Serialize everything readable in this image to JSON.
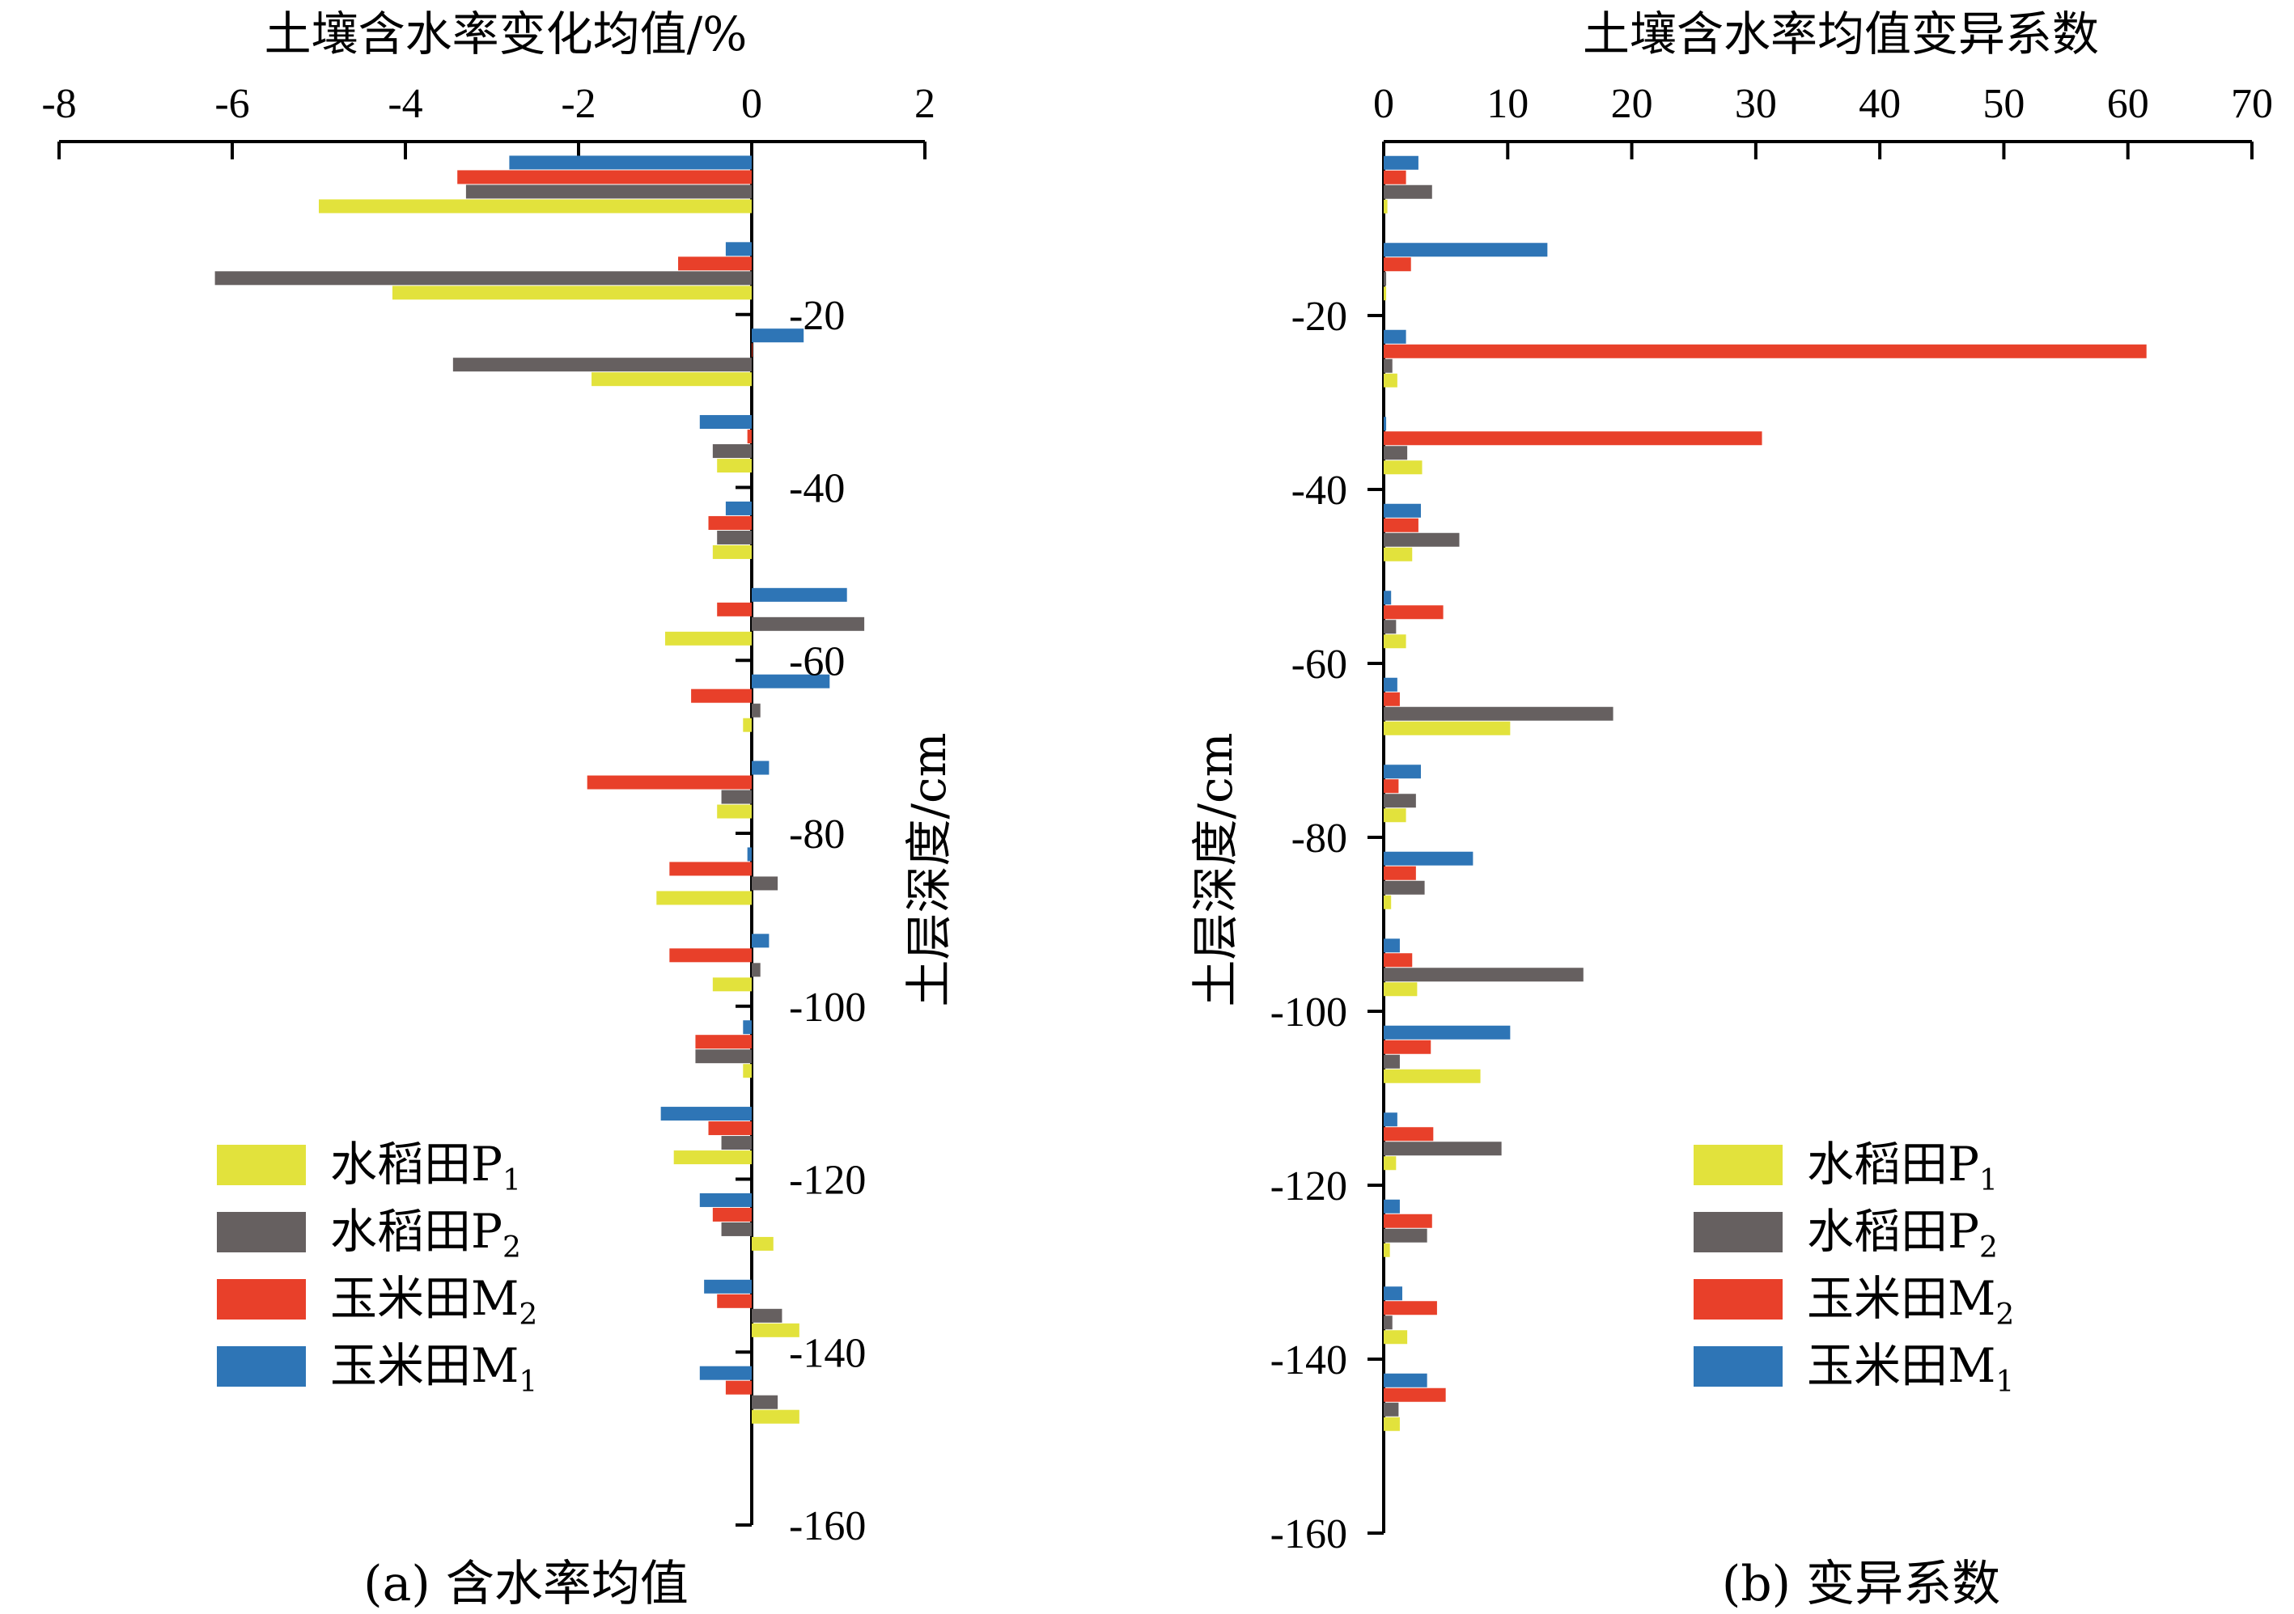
{
  "chart_data": [
    {
      "type": "bar",
      "orientation": "horizontal",
      "caption": "(a) 含水率均值",
      "xlabel": "土壤含水率变化均值/%",
      "ylabel": "土层深度/cm",
      "xlim": [
        -8,
        2
      ],
      "xticks": [
        "-8",
        "-6",
        "-4",
        "-2",
        "0",
        "2"
      ],
      "ylim": [
        -160,
        0
      ],
      "yticks": [
        "-20",
        "-40",
        "-60",
        "-80",
        "-100",
        "-120",
        "-140",
        "-160"
      ],
      "depth_groups": [
        -5,
        -15,
        -25,
        -35,
        -45,
        -55,
        -65,
        -75,
        -85,
        -95,
        -105,
        -115,
        -125,
        -135,
        -145
      ],
      "series": [
        {
          "name": "玉米田M",
          "sub": "1",
          "color": "#2e75b6",
          "values": [
            -2.8,
            -0.3,
            0.6,
            -0.6,
            -0.3,
            1.1,
            0.9,
            0.2,
            -0.05,
            0.2,
            -0.1,
            -1.05,
            -0.6,
            -0.55,
            -0.6
          ]
        },
        {
          "name": "玉米田M",
          "sub": "2",
          "color": "#e8402a",
          "values": [
            -3.4,
            -0.85,
            0.0,
            -0.05,
            -0.5,
            -0.4,
            -0.7,
            -1.9,
            -0.95,
            -0.95,
            -0.65,
            -0.5,
            -0.45,
            -0.4,
            -0.3
          ]
        },
        {
          "name": "水稻田P",
          "sub": "2",
          "color": "#666060",
          "values": [
            -3.3,
            -6.2,
            -3.45,
            -0.45,
            -0.4,
            1.3,
            0.1,
            -0.35,
            0.3,
            0.1,
            -0.65,
            -0.35,
            -0.35,
            0.35,
            0.3
          ]
        },
        {
          "name": "水稻田P",
          "sub": "1",
          "color": "#e2e23c",
          "values": [
            -5.0,
            -4.15,
            -1.85,
            -0.4,
            -0.45,
            -1.0,
            -0.1,
            -0.4,
            -1.1,
            -0.45,
            -0.1,
            -0.9,
            0.25,
            0.55,
            0.55
          ]
        }
      ]
    },
    {
      "type": "bar",
      "orientation": "horizontal",
      "caption": "(b) 变异系数",
      "xlabel": "土壤含水率均值变异系数",
      "ylabel": "土层深度/cm",
      "xlim": [
        0,
        70
      ],
      "xticks": [
        "0",
        "10",
        "20",
        "30",
        "40",
        "50",
        "60",
        "70"
      ],
      "ylim": [
        -160,
        0
      ],
      "yticks": [
        "-20",
        "-40",
        "-60",
        "-80",
        "-100",
        "-120",
        "-140",
        "-160"
      ],
      "depth_groups": [
        -5,
        -15,
        -25,
        -35,
        -45,
        -55,
        -65,
        -75,
        -85,
        -95,
        -105,
        -115,
        -125,
        -135,
        -145
      ],
      "series": [
        {
          "name": "玉米田M",
          "sub": "1",
          "color": "#2e75b6",
          "values": [
            2.8,
            13.2,
            1.8,
            0.2,
            3.0,
            0.6,
            1.1,
            3.0,
            7.2,
            1.3,
            10.2,
            1.1,
            1.3,
            1.5,
            3.5
          ]
        },
        {
          "name": "玉米田M",
          "sub": "2",
          "color": "#e8402a",
          "values": [
            1.8,
            2.2,
            61.5,
            30.5,
            2.8,
            4.8,
            1.3,
            1.2,
            2.6,
            2.3,
            3.8,
            4.0,
            3.9,
            4.3,
            5.0
          ]
        },
        {
          "name": "水稻田P",
          "sub": "2",
          "color": "#666060",
          "values": [
            3.9,
            0.2,
            0.7,
            1.9,
            6.1,
            1.0,
            18.5,
            2.6,
            3.3,
            16.1,
            1.3,
            9.5,
            3.5,
            0.7,
            1.2
          ]
        },
        {
          "name": "水稻田P",
          "sub": "1",
          "color": "#e2e23c",
          "values": [
            0.3,
            0.2,
            1.1,
            3.1,
            2.3,
            1.8,
            10.2,
            1.8,
            0.6,
            2.7,
            7.8,
            1.0,
            0.5,
            1.9,
            1.3
          ]
        }
      ]
    }
  ],
  "legend": [
    {
      "label": "水稻田P",
      "sub": "1",
      "color": "#e2e23c"
    },
    {
      "label": "水稻田P",
      "sub": "2",
      "color": "#666060"
    },
    {
      "label": "玉米田M",
      "sub": "2",
      "color": "#e8402a"
    },
    {
      "label": "玉米田M",
      "sub": "1",
      "color": "#2e75b6"
    }
  ]
}
